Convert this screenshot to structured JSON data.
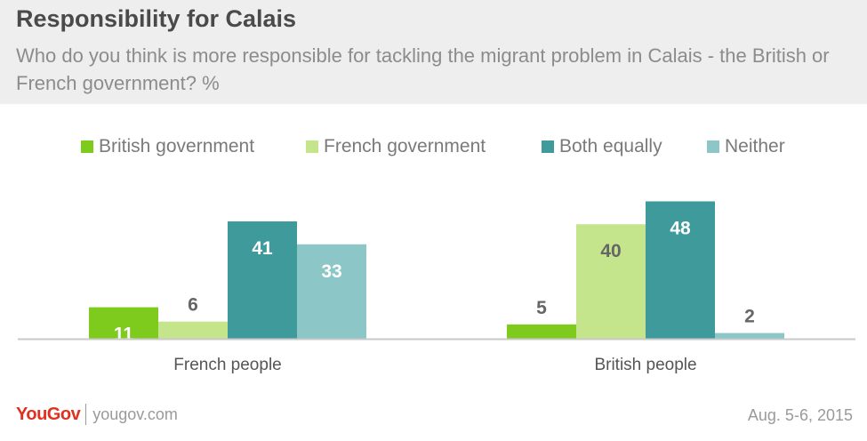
{
  "header": {
    "title": "Responsibility for Calais",
    "subtitle": "Who do you think is more responsible for tackling the migrant problem in Calais - the British or French government? %"
  },
  "colors": {
    "british_government": "#7ecb1e",
    "french_government": "#c5e58c",
    "both_equally": "#3f9b9b",
    "neither": "#8cc6c6",
    "label_dark": "#666666",
    "label_light": "#ffffff"
  },
  "chart_data": {
    "type": "bar",
    "title": "Responsibility for Calais",
    "subtitle": "Who do you think is more responsible for tackling the migrant problem in Calais - the British or French government? %",
    "categories": [
      "French people",
      "British people"
    ],
    "series": [
      {
        "name": "British government",
        "values": [
          11,
          5
        ]
      },
      {
        "name": "French government",
        "values": [
          6,
          40
        ]
      },
      {
        "name": "Both equally",
        "values": [
          41,
          48
        ]
      },
      {
        "name": "Neither",
        "values": [
          33,
          2
        ]
      }
    ],
    "ylim": [
      0,
      50
    ],
    "grid": false,
    "legend": "top"
  },
  "footer": {
    "logo_you": "You",
    "logo_gov": "Gov",
    "site": "yougov.com",
    "date": "Aug. 5-6, 2015"
  }
}
